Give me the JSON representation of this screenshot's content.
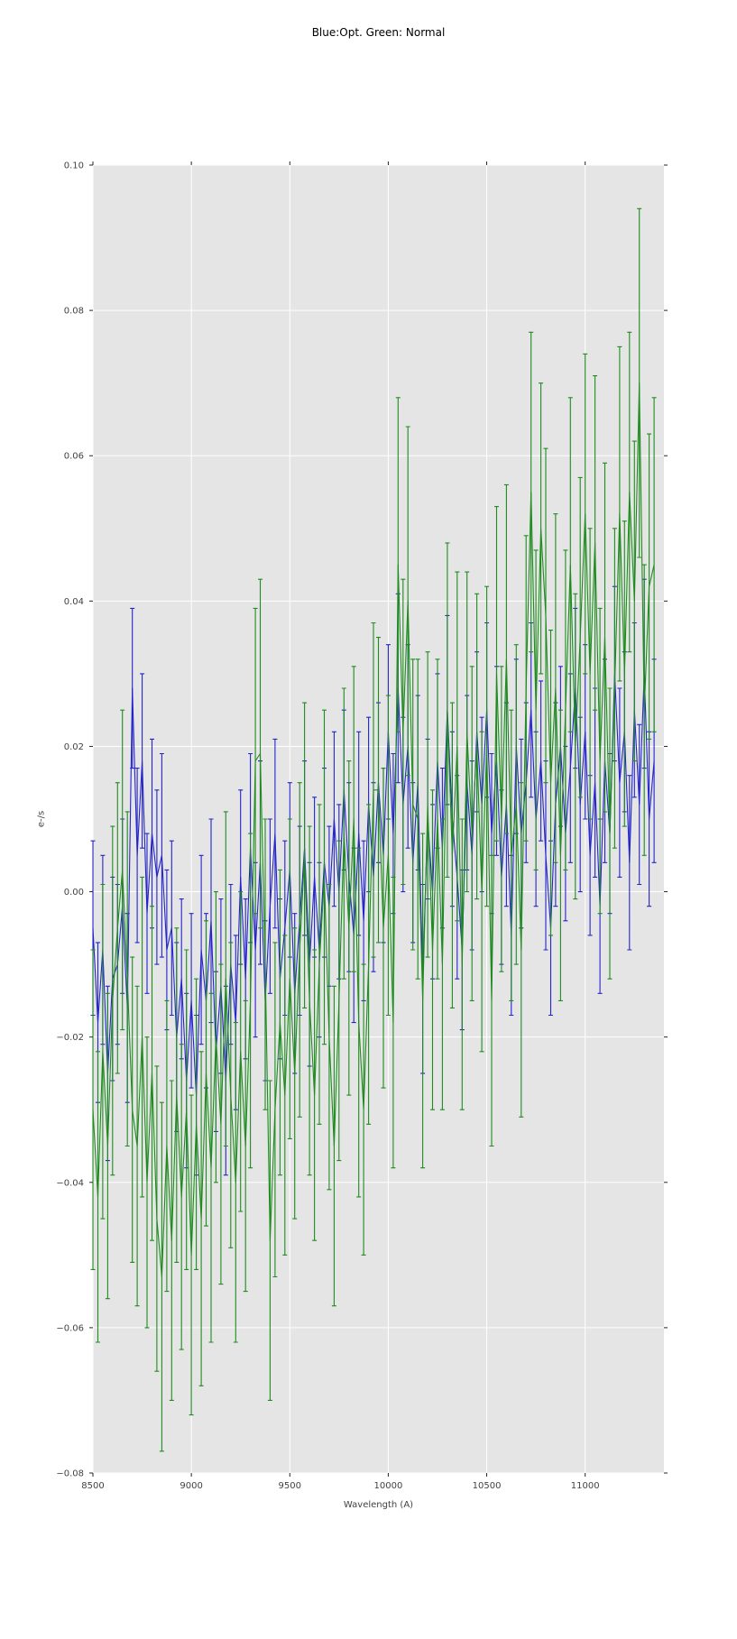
{
  "chart_data": {
    "type": "line",
    "title": "Blue:Opt. Green: Normal",
    "xlabel": "Wavelength (A)",
    "ylabel": "e-/s",
    "x_range": [
      8500,
      11400
    ],
    "y_range": [
      -0.08,
      0.1
    ],
    "grid": true,
    "legend": "none (colors named in title)",
    "plot_background": "#e5e5e5",
    "gridline_color": "#ffffff",
    "tick_color": "#262626",
    "x_ticks": [
      {
        "value": 8500,
        "label": "8500"
      },
      {
        "value": 9000,
        "label": "9000"
      },
      {
        "value": 9500,
        "label": "9500"
      },
      {
        "value": 10000,
        "label": "10000"
      },
      {
        "value": 10500,
        "label": "10500"
      },
      {
        "value": 11000,
        "label": "11000"
      }
    ],
    "y_ticks": [
      {
        "value": 0.1,
        "label": "0.10"
      },
      {
        "value": 0.08,
        "label": "0.08"
      },
      {
        "value": 0.06,
        "label": "0.06"
      },
      {
        "value": 0.04,
        "label": "0.04"
      },
      {
        "value": 0.02,
        "label": "0.02"
      },
      {
        "value": 0.0,
        "label": "0.00"
      },
      {
        "value": -0.02,
        "label": "−0.02"
      },
      {
        "value": -0.04,
        "label": "−0.04"
      },
      {
        "value": -0.06,
        "label": "−0.06"
      },
      {
        "value": -0.08,
        "label": "−0.08"
      }
    ],
    "y_scale": 0.001,
    "series": [
      {
        "name": "Opt",
        "color": "#2424cc",
        "marker": "errorbar-line",
        "x_start": 8500,
        "x_step": 25,
        "y": [
          -5,
          -18,
          -8,
          -25,
          -12,
          -10,
          -2,
          -16,
          28,
          5,
          18,
          -3,
          8,
          2,
          5,
          -8,
          -5,
          -20,
          -12,
          -26,
          -15,
          -28,
          -8,
          -15,
          -4,
          -22,
          -13,
          -26,
          -10,
          -18,
          2,
          -12,
          6,
          -8,
          4,
          -15,
          -2,
          8,
          -12,
          -5,
          3,
          -14,
          -4,
          6,
          -10,
          2,
          -8,
          4,
          -2,
          10,
          0,
          14,
          2,
          -6,
          8,
          -4,
          12,
          2,
          15,
          5,
          22,
          8,
          28,
          12,
          20,
          4,
          15,
          -12,
          10,
          0,
          18,
          6,
          25,
          10,
          2,
          -8,
          15,
          5,
          22,
          12,
          25,
          8,
          18,
          2,
          12,
          -6,
          20,
          8,
          15,
          25,
          10,
          18,
          5,
          -5,
          12,
          20,
          8,
          17,
          28,
          12,
          22,
          5,
          15,
          -2,
          18,
          8,
          30,
          15,
          22,
          4,
          25,
          12,
          30,
          10,
          18
        ],
        "yerr": [
          12,
          11,
          13,
          12,
          14,
          11,
          12,
          13,
          11,
          12,
          12,
          11,
          13,
          12,
          14,
          11,
          12,
          13,
          11,
          12,
          12,
          11,
          13,
          12,
          14,
          11,
          12,
          13,
          11,
          12,
          12,
          11,
          13,
          12,
          14,
          11,
          12,
          13,
          11,
          12,
          12,
          11,
          13,
          12,
          14,
          11,
          12,
          13,
          11,
          12,
          12,
          11,
          13,
          12,
          14,
          11,
          12,
          13,
          11,
          12,
          12,
          11,
          13,
          12,
          14,
          11,
          12,
          13,
          11,
          12,
          12,
          11,
          13,
          12,
          14,
          11,
          12,
          13,
          11,
          12,
          12,
          11,
          13,
          12,
          14,
          11,
          12,
          13,
          11,
          12,
          12,
          11,
          13,
          12,
          14,
          11,
          12,
          13,
          11,
          12,
          12,
          11,
          13,
          12,
          14,
          11,
          12,
          13,
          11,
          12,
          12,
          11,
          13,
          12,
          14
        ]
      },
      {
        "name": "Normal",
        "color": "#1e8c1e",
        "marker": "errorbar-line",
        "x_start": 8500,
        "x_step": 25,
        "y": [
          -30,
          -42,
          -22,
          -35,
          -15,
          -5,
          3,
          -12,
          -30,
          -35,
          -20,
          -40,
          -25,
          -45,
          -53,
          -35,
          -48,
          -28,
          -42,
          -30,
          -50,
          -32,
          -45,
          -25,
          -38,
          -20,
          -32,
          -12,
          -28,
          -40,
          -22,
          -35,
          -15,
          18,
          19,
          -10,
          -48,
          -30,
          -18,
          -28,
          -12,
          -25,
          -8,
          5,
          -15,
          -28,
          -10,
          2,
          -20,
          -35,
          -15,
          8,
          -5,
          10,
          -18,
          -30,
          -10,
          14,
          14,
          -5,
          5,
          -18,
          45,
          22,
          40,
          12,
          10,
          -15,
          12,
          -8,
          10,
          -10,
          25,
          5,
          20,
          -10,
          22,
          8,
          20,
          0,
          20,
          -15,
          30,
          10,
          32,
          5,
          12,
          -8,
          28,
          55,
          25,
          50,
          38,
          15,
          28,
          5,
          25,
          45,
          20,
          35,
          52,
          30,
          48,
          18,
          35,
          8,
          28,
          52,
          30,
          55,
          40,
          70,
          25,
          42,
          45
        ],
        "yerr": [
          22,
          20,
          23,
          21,
          24,
          20,
          22,
          23,
          21,
          22,
          22,
          20,
          23,
          21,
          24,
          20,
          22,
          23,
          21,
          22,
          22,
          20,
          23,
          21,
          24,
          20,
          22,
          23,
          21,
          22,
          22,
          20,
          23,
          21,
          24,
          20,
          22,
          23,
          21,
          22,
          22,
          20,
          23,
          21,
          24,
          20,
          22,
          23,
          21,
          22,
          22,
          20,
          23,
          21,
          24,
          20,
          22,
          23,
          21,
          22,
          22,
          20,
          23,
          21,
          24,
          20,
          22,
          23,
          21,
          22,
          22,
          20,
          23,
          21,
          24,
          20,
          22,
          23,
          21,
          22,
          22,
          20,
          23,
          21,
          24,
          20,
          22,
          23,
          21,
          22,
          22,
          20,
          23,
          21,
          24,
          20,
          22,
          23,
          21,
          22,
          22,
          20,
          23,
          21,
          24,
          20,
          22,
          23,
          21,
          22,
          22,
          24,
          20,
          21,
          23
        ]
      }
    ]
  }
}
